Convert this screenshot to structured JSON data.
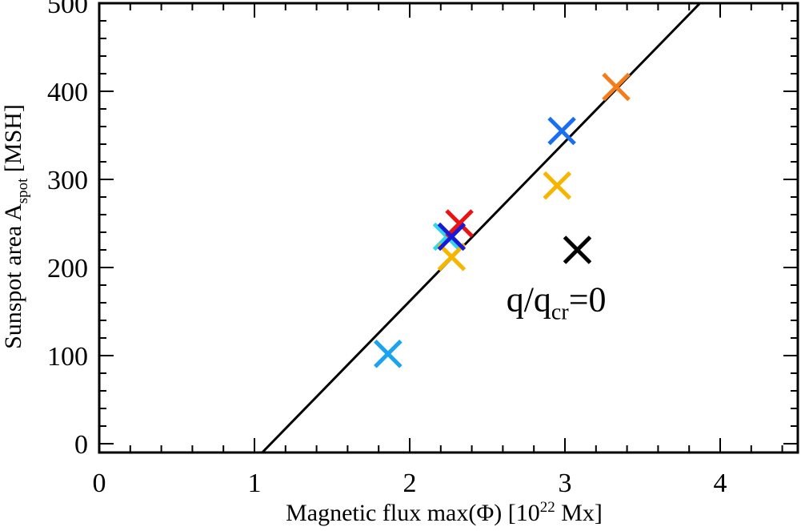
{
  "chart_data": {
    "type": "scatter",
    "title": "",
    "xlabel": "Magnetic flux max(Φ) [10",
    "xlabel_sup": "22",
    "xlabel_tail": " Mx]",
    "ylabel": "Sunspot area A",
    "ylabel_sub": "spot",
    "ylabel_tail": " [MSH]",
    "xlim": [
      0,
      4.5
    ],
    "ylim": [
      -10,
      500
    ],
    "xticks": [
      0,
      1,
      2,
      3,
      4
    ],
    "yticks": [
      0,
      100,
      200,
      300,
      400,
      500
    ],
    "grid": false,
    "fit_line": {
      "x": [
        1.05,
        3.87
      ],
      "y": [
        -10,
        500
      ],
      "color": "#000000"
    },
    "series": [
      {
        "x": 1.86,
        "y": 102,
        "color": "#1aa3f0"
      },
      {
        "x": 2.24,
        "y": 235,
        "color": "#33d6e8"
      },
      {
        "x": 2.27,
        "y": 212,
        "color": "#f7b500"
      },
      {
        "x": 2.32,
        "y": 250,
        "color": "#ee1111"
      },
      {
        "x": 2.27,
        "y": 235,
        "color": "#1a1ad6"
      },
      {
        "x": 2.95,
        "y": 293,
        "color": "#f7b500"
      },
      {
        "x": 2.98,
        "y": 355,
        "color": "#1a6ff0"
      },
      {
        "x": 3.33,
        "y": 405,
        "color": "#f57c1a"
      },
      {
        "x": 3.08,
        "y": 220,
        "color": "#000000"
      }
    ],
    "annotation": {
      "prefix": "q/q",
      "sub": "cr",
      "suffix": "=0",
      "x": 3.05,
      "y": 155
    }
  }
}
